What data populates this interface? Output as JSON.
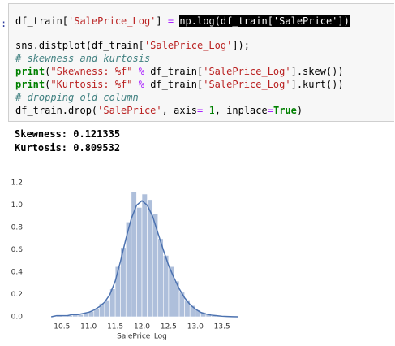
{
  "code_lines": [
    [
      {
        "text": "df_train["
      },
      {
        "text": "'SalePrice_Log'",
        "color": "#ba2121"
      },
      {
        "text": "] "
      },
      {
        "text": "=",
        "color": "#aa22ff"
      },
      {
        "text": " "
      },
      {
        "text": "np.log(df_train['SalePrice'])",
        "highlight": true
      }
    ],
    [
      {
        "text": "sns.distplot(df_train["
      },
      {
        "text": "'SalePrice_Log'",
        "color": "#ba2121"
      },
      {
        "text": "]);"
      }
    ],
    [
      {
        "text": "# skewness and kurtosis",
        "color": "#408080",
        "italic": true
      }
    ],
    [
      {
        "text": "print",
        "color": "#008000",
        "bold": true
      },
      {
        "text": "("
      },
      {
        "text": "\"Skewness: %f\"",
        "color": "#ba2121"
      },
      {
        "text": " "
      },
      {
        "text": "%",
        "color": "#aa22ff"
      },
      {
        "text": " df_train["
      },
      {
        "text": "'SalePrice_Log'",
        "color": "#ba2121"
      },
      {
        "text": "].skew())"
      }
    ],
    [
      {
        "text": "print",
        "color": "#008000",
        "bold": true
      },
      {
        "text": "("
      },
      {
        "text": "\"Kurtosis: %f\"",
        "color": "#ba2121"
      },
      {
        "text": " "
      },
      {
        "text": "%",
        "color": "#aa22ff"
      },
      {
        "text": " df_train["
      },
      {
        "text": "'SalePrice_Log'",
        "color": "#ba2121"
      },
      {
        "text": "].kurt())"
      }
    ],
    [
      {
        "text": "# dropping old column",
        "color": "#408080",
        "italic": true
      }
    ],
    [
      {
        "text": "df_train.drop("
      },
      {
        "text": "'SalePrice'",
        "color": "#ba2121"
      },
      {
        "text": ", axis"
      },
      {
        "text": "=",
        "color": "#aa22ff"
      },
      {
        "text": " "
      },
      {
        "text": "1",
        "color": "#008000"
      },
      {
        "text": ", inplace"
      },
      {
        "text": "=",
        "color": "#aa22ff"
      },
      {
        "text": "True",
        "color": "#008000",
        "bold": true
      },
      {
        "text": ")"
      }
    ]
  ],
  "output_lines": [
    "Skewness: 0.121335",
    "Kurtosis: 0.809532"
  ],
  "chart_data": {
    "type": "histogram",
    "xlabel": "SalePrice_Log",
    "bins": [
      10.4,
      10.5,
      10.6,
      10.7,
      10.8,
      10.9,
      11.0,
      11.1,
      11.2,
      11.3,
      11.4,
      11.5,
      11.6,
      11.7,
      11.8,
      11.9,
      12.0,
      12.1,
      12.2,
      12.3,
      12.4,
      12.5,
      12.6,
      12.7,
      12.8,
      12.9,
      13.0,
      13.1,
      13.2,
      13.3,
      13.4,
      13.5,
      13.6
    ],
    "values": [
      0.01,
      0,
      0.01,
      0.02,
      0.02,
      0.03,
      0.05,
      0.07,
      0.12,
      0.15,
      0.25,
      0.45,
      0.62,
      0.85,
      1.12,
      0.98,
      1.1,
      1.05,
      0.92,
      0.7,
      0.55,
      0.45,
      0.32,
      0.22,
      0.15,
      0.1,
      0.06,
      0.04,
      0.02,
      0.01,
      0.01,
      0
    ],
    "color": "#4c72b0",
    "kde": {
      "color": "#4c72b0",
      "x": [
        10.3,
        10.4,
        10.5,
        10.6,
        10.7,
        10.8,
        10.9,
        11.0,
        11.1,
        11.2,
        11.3,
        11.4,
        11.5,
        11.6,
        11.7,
        11.8,
        11.9,
        12.0,
        12.1,
        12.2,
        12.3,
        12.4,
        12.5,
        12.6,
        12.7,
        12.8,
        12.9,
        13.0,
        13.1,
        13.2,
        13.3,
        13.4,
        13.5,
        13.6,
        13.7,
        13.8
      ],
      "values": [
        0,
        0.01,
        0.01,
        0.01,
        0.02,
        0.02,
        0.03,
        0.04,
        0.06,
        0.09,
        0.13,
        0.2,
        0.32,
        0.5,
        0.7,
        0.88,
        1.0,
        1.04,
        1.0,
        0.9,
        0.75,
        0.6,
        0.46,
        0.35,
        0.25,
        0.17,
        0.11,
        0.07,
        0.04,
        0.025,
        0.015,
        0.01,
        0.005,
        0.003,
        0.001,
        0
      ]
    },
    "xlim": [
      10.1,
      13.9
    ],
    "ylim": [
      0,
      1.26
    ],
    "xticks": [
      10.5,
      {
        "value": 11,
        "label": "11.0"
      },
      11.5,
      {
        "value": 12,
        "label": "12.0"
      },
      12.5,
      {
        "value": 13,
        "label": "13.0"
      },
      13.5
    ],
    "yticks": [
      {
        "value": 0,
        "label": "0.0"
      },
      0.2,
      0.4,
      0.6,
      0.8,
      {
        "value": 1,
        "label": "1.0"
      },
      1.2
    ],
    "grid": false
  }
}
